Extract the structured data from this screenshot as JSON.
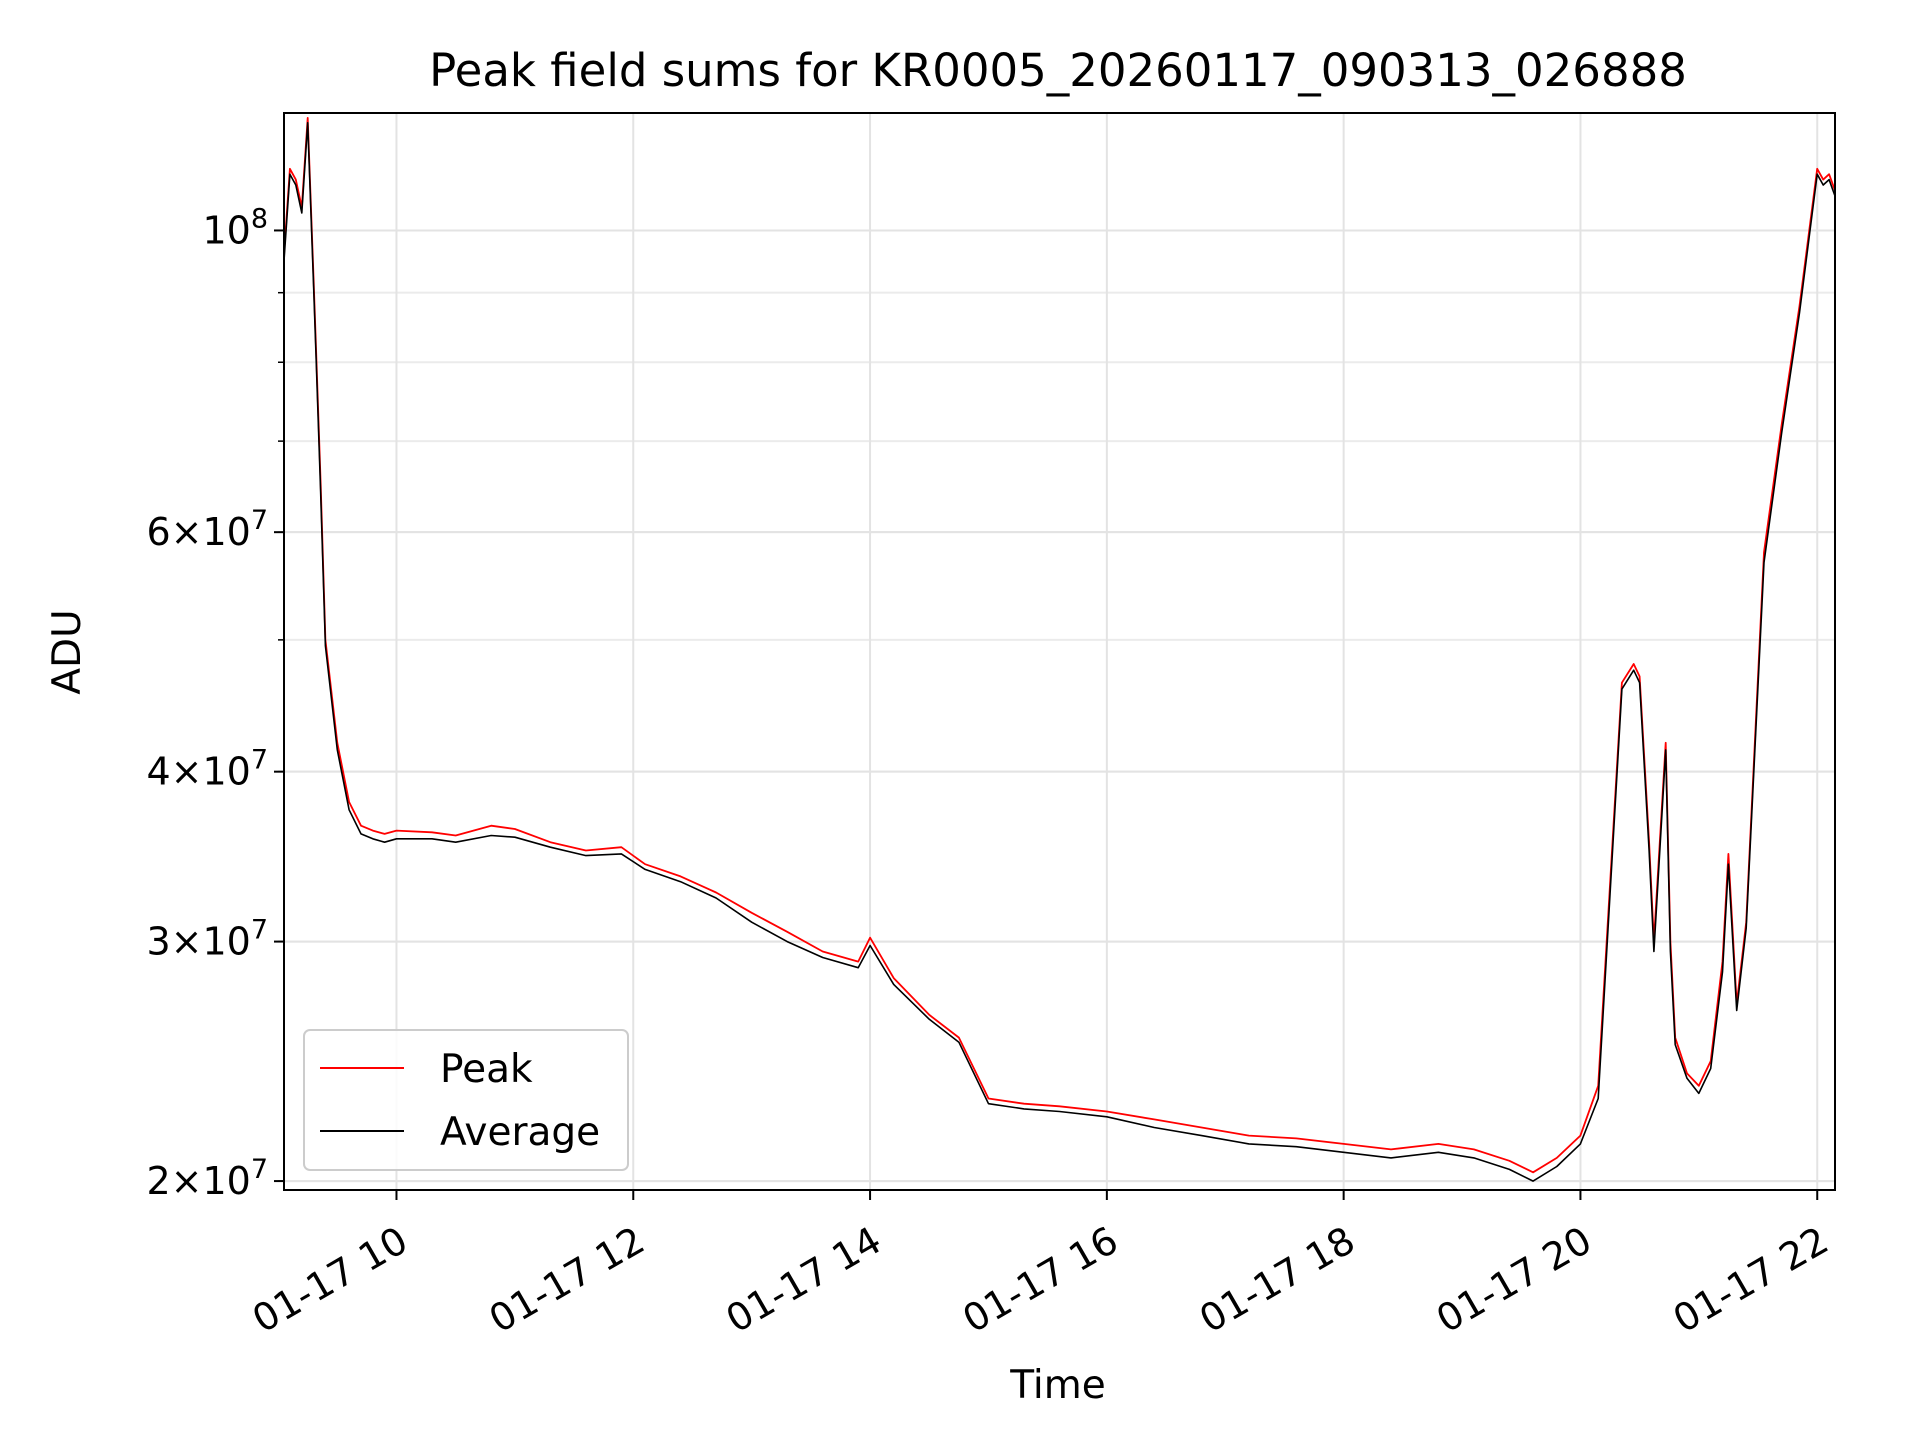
{
  "chart_data": {
    "type": "line",
    "title": "Peak field sums for KR0005_20260117_090313_026888",
    "xlabel": "Time",
    "ylabel": "ADU",
    "yscale": "log",
    "grid": true,
    "legend_position": "lower-left",
    "xlim_hours": [
      9.05,
      22.15
    ],
    "ylim": [
      19700000,
      122000000
    ],
    "x_ticks": [
      {
        "hour": 10,
        "label": "01-17 10"
      },
      {
        "hour": 12,
        "label": "01-17 12"
      },
      {
        "hour": 14,
        "label": "01-17 14"
      },
      {
        "hour": 16,
        "label": "01-17 16"
      },
      {
        "hour": 18,
        "label": "01-17 18"
      },
      {
        "hour": 20,
        "label": "01-17 20"
      },
      {
        "hour": 22,
        "label": "01-17 22"
      }
    ],
    "y_ticks": [
      {
        "value": 20000000,
        "mant": "2",
        "exp": "7"
      },
      {
        "value": 30000000,
        "mant": "3",
        "exp": "7"
      },
      {
        "value": 40000000,
        "mant": "4",
        "exp": "7"
      },
      {
        "value": 60000000,
        "mant": "6",
        "exp": "7"
      },
      {
        "value": 100000000,
        "mant": "",
        "exp": "8"
      }
    ],
    "series": [
      {
        "name": "Peak",
        "color": "#ff0000",
        "x": [
          9.05,
          9.1,
          9.15,
          9.2,
          9.25,
          9.3,
          9.32,
          9.36,
          9.4,
          9.5,
          9.6,
          9.7,
          9.8,
          9.9,
          10,
          10.3,
          10.5,
          10.8,
          11,
          11.3,
          11.6,
          11.9,
          12.1,
          12.4,
          12.7,
          13,
          13.3,
          13.6,
          13.9,
          14,
          14.2,
          14.5,
          14.75,
          15,
          15.3,
          15.6,
          16,
          16.4,
          16.8,
          17.2,
          17.6,
          18,
          18.4,
          18.8,
          19.1,
          19.4,
          19.6,
          19.8,
          20,
          20.15,
          20.35,
          20.45,
          20.5,
          20.58,
          20.62,
          20.72,
          20.76,
          20.8,
          20.9,
          21,
          21.1,
          21.2,
          21.25,
          21.32,
          21.4,
          21.55,
          21.7,
          21.85,
          22,
          22.05,
          22.1,
          22.15
        ],
        "values": [
          96000000,
          111000000,
          109000000,
          104000000,
          121000000,
          92000000,
          82000000,
          65000000,
          50000000,
          42000000,
          38000000,
          36500000,
          36200000,
          36000000,
          36200000,
          36100000,
          35900000,
          36500000,
          36300000,
          35500000,
          35000000,
          35200000,
          34200000,
          33500000,
          32600000,
          31500000,
          30500000,
          29500000,
          29000000,
          30200000,
          28200000,
          26500000,
          25500000,
          23000000,
          22800000,
          22700000,
          22500000,
          22200000,
          21900000,
          21600000,
          21500000,
          21300000,
          21100000,
          21300000,
          21100000,
          20700000,
          20300000,
          20800000,
          21600000,
          23500000,
          46500000,
          48000000,
          47000000,
          35500000,
          30000000,
          42000000,
          30000000,
          25500000,
          24000000,
          23500000,
          24500000,
          29000000,
          34800000,
          27000000,
          31000000,
          58000000,
          72000000,
          88000000,
          111000000,
          109000000,
          110000000,
          107000000
        ]
      },
      {
        "name": "Average",
        "color": "#000000",
        "x": [
          9.05,
          9.1,
          9.15,
          9.2,
          9.25,
          9.3,
          9.32,
          9.36,
          9.4,
          9.5,
          9.6,
          9.7,
          9.8,
          9.9,
          10,
          10.3,
          10.5,
          10.8,
          11,
          11.3,
          11.6,
          11.9,
          12.1,
          12.4,
          12.7,
          13,
          13.3,
          13.6,
          13.9,
          14,
          14.2,
          14.5,
          14.75,
          15,
          15.3,
          15.6,
          16,
          16.4,
          16.8,
          17.2,
          17.6,
          18,
          18.4,
          18.8,
          19.1,
          19.4,
          19.6,
          19.8,
          20,
          20.15,
          20.35,
          20.45,
          20.5,
          20.58,
          20.62,
          20.72,
          20.76,
          20.8,
          20.9,
          21,
          21.1,
          21.2,
          21.25,
          21.32,
          21.4,
          21.55,
          21.7,
          21.85,
          22,
          22.05,
          22.1,
          22.15
        ],
        "values": [
          95000000,
          110000000,
          108000000,
          103000000,
          120000000,
          91000000,
          81000000,
          64000000,
          49500000,
          41500000,
          37500000,
          36000000,
          35700000,
          35500000,
          35700000,
          35700000,
          35500000,
          35900000,
          35800000,
          35200000,
          34700000,
          34800000,
          33900000,
          33200000,
          32300000,
          31000000,
          30000000,
          29200000,
          28700000,
          29800000,
          27900000,
          26300000,
          25300000,
          22800000,
          22600000,
          22500000,
          22300000,
          21900000,
          21600000,
          21300000,
          21200000,
          21000000,
          20800000,
          21000000,
          20800000,
          20400000,
          20000000,
          20500000,
          21300000,
          23000000,
          46000000,
          47500000,
          46500000,
          35000000,
          29500000,
          41500000,
          29500000,
          25200000,
          23800000,
          23200000,
          24200000,
          28500000,
          34200000,
          26700000,
          30700000,
          57000000,
          71000000,
          87000000,
          110000000,
          108000000,
          109000000,
          106000000
        ]
      }
    ]
  }
}
